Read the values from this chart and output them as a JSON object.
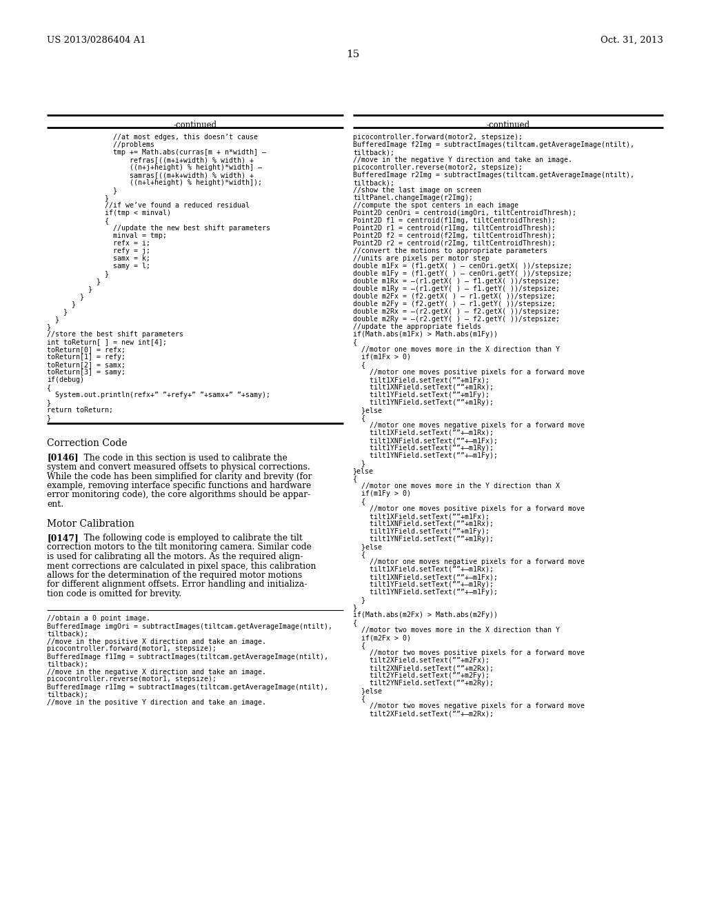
{
  "page_number": "15",
  "top_left": "US 2013/0286404 A1",
  "top_right": "Oct. 31, 2013",
  "col1_header": "-continued",
  "col2_header": "-continued",
  "bg_color": "#ffffff",
  "text_color": "#000000",
  "col1_code": [
    "                //at most edges, this doesn’t cause",
    "                //problems",
    "                tmp += Math.abs(curras[m + n*width] –",
    "                    refras[((m+i+width) % width) +",
    "                    ((n+j+height) % height)*width] –",
    "                    samras[((m+k+width) % width) +",
    "                    ((n+l+height) % height)*width]);",
    "                }",
    "              }",
    "              //if we’ve found a reduced residual",
    "              if(tmp < minval)",
    "              {",
    "                //update the new best shift parameters",
    "                minval = tmp;",
    "                refx = i;",
    "                refy = j;",
    "                samx = k;",
    "                samy = l;",
    "              }",
    "            }",
    "          }",
    "        }",
    "      }",
    "    }",
    "  }",
    "}",
    "//store the best shift parameters",
    "int toReturn[ ] = new int[4];",
    "toReturn[0] = refx;",
    "toReturn[1] = refy;",
    "toReturn[2] = samx;",
    "toReturn[3] = samy;",
    "if(debug)",
    "{",
    "  System.out.println(refx+” ”+refy+” ”+samx+” ”+samy);",
    "}",
    "return toReturn;",
    "}"
  ],
  "col2_code_top": [
    "picocontroller.forward(motor2, stepsize);",
    "BufferedImage f2Img = subtractImages(tiltcam.getAverageImage(ntilt),",
    "tiltback);",
    "//move in the negative Y direction and take an image.",
    "picocontroller.reverse(motor2, stepsize);",
    "BufferedImage r2Img = subtractImages(tiltcam.getAverageImage(ntilt),",
    "tiltback);",
    "//show the last image on screen",
    "tiltPanel.changeImage(r2Img);",
    "//compute the spot centers in each image",
    "Point2D cenOri = centroid(imgOri, tiltCentroidThresh);",
    "Point2D f1 = centroid(f1Img, tiltCentroidThresh);",
    "Point2D r1 = centroid(r1Img, tiltCentroidThresh);",
    "Point2D f2 = centroid(f2Img, tiltCentroidThresh);",
    "Point2D r2 = centroid(r2Img, tiltCentroidThresh);",
    "//convert the motions to appropriate parameters",
    "//units are pixels per motor step",
    "double m1Fx = (f1.getX( ) – cenOri.getX( ))/stepsize;",
    "double m1Fy = (f1.getY( ) – cenOri.getY( ))/stepsize;",
    "double m1Rx = –(r1.getX( ) – f1.getX( ))/stepsize;",
    "double m1Ry = –(r1.getY( ) – f1.getY( ))/stepsize;",
    "double m2Fx = (f2.getX( ) – r1.getX( ))/stepsize;",
    "double m2Fy = (f2.getY( ) – r1.getY( ))/stepsize;",
    "double m2Rx = –(r2.getX( ) – f2.getX( ))/stepsize;",
    "double m2Ry = –(r2.getY( ) – f2.getY( ))/stepsize;",
    "//update the appropriate fields",
    "if(Math.abs(m1Fx) > Math.abs(m1Fy))",
    "{",
    "  //motor one moves more in the X direction than Y",
    "  if(m1Fx > 0)",
    "  {",
    "    //motor one moves positive pixels for a forward move",
    "    tilt1XField.setText(””+m1Fx);",
    "    tilt1XNField.setText(””+m1Rx);",
    "    tilt1YField.setText(””+m1Fy);",
    "    tilt1YNField.setText(””+m1Ry);",
    "  }else",
    "  {",
    "    //motor one moves negative pixels for a forward move",
    "    tilt1XField.setText(””+–m1Rx);",
    "    tilt1XNField.setText(””+–m1Fx);",
    "    tilt1YField.setText(””+–m1Ry);",
    "    tilt1YNField.setText(””+–m1Fy);",
    "  }",
    "}else",
    "{",
    "  //motor one moves more in the Y direction than X",
    "  if(m1Fy > 0)",
    "  {",
    "    //motor one moves positive pixels for a forward move",
    "    tilt1XField.setText(””+m1Fx);",
    "    tilt1XNField.setText(””+m1Rx);",
    "    tilt1YField.setText(””+m1Fy);",
    "    tilt1YNField.setText(””+m1Ry);",
    "  }else",
    "  {",
    "    //motor one moves negative pixels for a forward move",
    "    tilt1XField.setText(””+–m1Rx);",
    "    tilt1XNField.setText(””+–m1Fx);",
    "    tilt1YField.setText(””+–m1Ry);",
    "    tilt1YNField.setText(””+–m1Fy);",
    "  }",
    "}",
    "if(Math.abs(m2Fx) > Math.abs(m2Fy))",
    "{",
    "  //motor two moves more in the X direction than Y",
    "  if(m2Fx > 0)",
    "  {",
    "    //motor two moves positive pixels for a forward move",
    "    tilt2XField.setText(””+m2Fx);",
    "    tilt2XNField.setText(””+m2Rx);",
    "    tilt2YField.setText(””+m2Fy);",
    "    tilt2YNField.setText(””+m2Ry);",
    "  }else",
    "  {",
    "    //motor two moves negative pixels for a forward move",
    "    tilt2XField.setText(””+–m2Rx);"
  ],
  "col1_bottom_code": [
    "//obtain a 0 point image.",
    "BufferedImage imgOri = subtractImages(tiltcam.getAverageImage(ntilt),",
    "tiltback);",
    "//move in the positive X direction and take an image.",
    "picocontroller.forward(motor1, stepsize);",
    "BufferedImage f1Img = subtractImages(tiltcam.getAverageImage(ntilt),",
    "tiltback);",
    "//move in the negative X direction and take an image.",
    "picocontroller.reverse(motor1, stepsize);",
    "BufferedImage r1Img = subtractImages(tiltcam.getAverageImage(ntilt),",
    "tiltback);",
    "//move in the positive Y direction and take an image."
  ],
  "correction_heading": "Correction Code",
  "para0146_label": "[0146]",
  "para0146_text": [
    "   The code in this section is used to calibrate the",
    "system and convert measured offsets to physical corrections.",
    "While the code has been simplified for clarity and brevity (for",
    "example, removing interface specific functions and hardware",
    "error monitoring code), the core algorithms should be appar-",
    "ent."
  ],
  "motor_heading": "Motor Calibration",
  "para0147_label": "[0147]",
  "para0147_text": [
    "   The following code is employed to calibrate the tilt",
    "correction motors to the tilt monitoring camera. Similar code",
    "is used for calibrating all the motors. As the required align-",
    "ment corrections are calculated in pixel space, this calibration",
    "allows for the determination of the required motor motions",
    "for different alignment offsets. Error handling and initializa-",
    "tion code is omitted for brevity."
  ]
}
